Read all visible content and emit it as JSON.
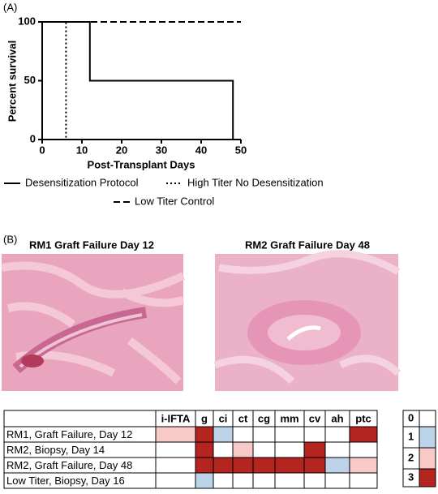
{
  "panel_a": {
    "label": "(A)",
    "chart_data": {
      "type": "line",
      "ylabel": "Percent survival",
      "xlabel": "Post-Transplant Days",
      "xlim": [
        0,
        50
      ],
      "ylim": [
        0,
        100
      ],
      "xticks": [
        0,
        10,
        20,
        30,
        40,
        50
      ],
      "yticks": [
        0,
        50,
        100
      ],
      "series": [
        {
          "name": "Desensitization Protocol",
          "color": "#000000",
          "style": "solid",
          "x": [
            0,
            12,
            12,
            48,
            48
          ],
          "values": [
            100,
            100,
            50,
            50,
            0
          ]
        },
        {
          "name": "High Titer No Desensitization",
          "color": "#000000",
          "style": "dotted",
          "x": [
            0,
            6,
            6
          ],
          "values": [
            100,
            100,
            0
          ]
        },
        {
          "name": "Low Titer Control",
          "color": "#000000",
          "style": "dashed",
          "x": [
            0,
            50
          ],
          "values": [
            100,
            100
          ]
        }
      ]
    }
  },
  "panel_b": {
    "label": "(B)",
    "images": [
      "RM1 Graft Failure Day 12",
      "RM2 Graft Failure Day 48"
    ],
    "table": {
      "columns": [
        "i-IFTA",
        "g",
        "ci",
        "ct",
        "cg",
        "mm",
        "cv",
        "ah",
        "ptc"
      ],
      "rows": [
        {
          "label": "RM1, Graft Failure, Day 12",
          "scores": [
            2,
            3,
            1,
            0,
            0,
            0,
            0,
            0,
            3
          ]
        },
        {
          "label": "RM2, Biopsy, Day 14",
          "scores": [
            0,
            3,
            0,
            2,
            0,
            0,
            3,
            0,
            0
          ]
        },
        {
          "label": "RM2, Graft Failure, Day 48",
          "scores": [
            0,
            3,
            3,
            3,
            3,
            3,
            3,
            1,
            2
          ]
        },
        {
          "label": "Low Titer, Biopsy, Day 16",
          "scores": [
            0,
            1,
            0,
            0,
            0,
            0,
            0,
            0,
            0
          ]
        }
      ]
    },
    "scale": {
      "levels": [
        0,
        1,
        2,
        3
      ],
      "colors": [
        "#ffffff",
        "#bcd3ea",
        "#f7c9c7",
        "#b5251f"
      ]
    }
  }
}
